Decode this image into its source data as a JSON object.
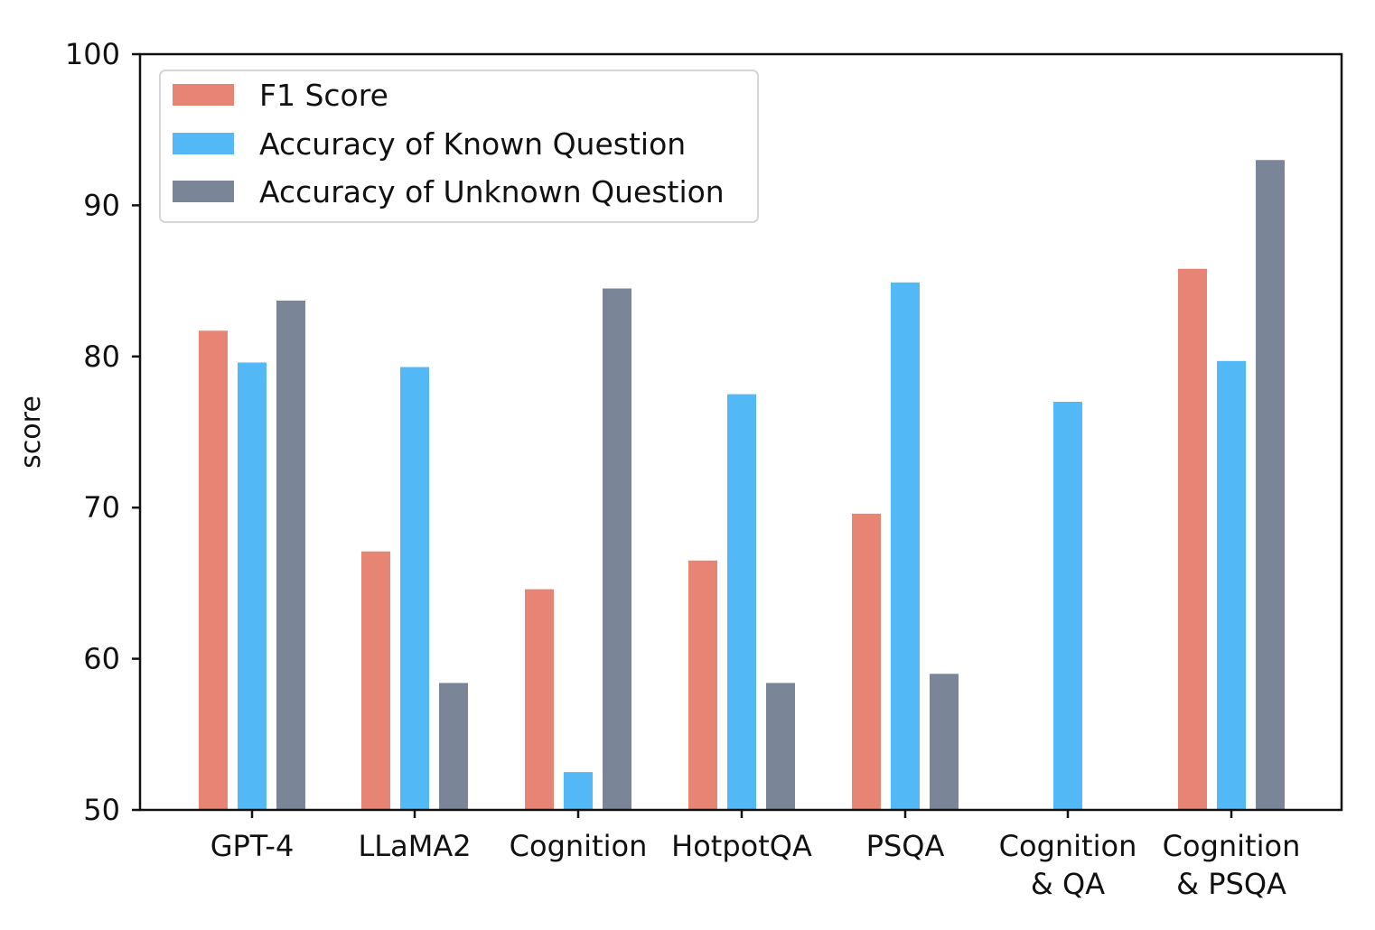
{
  "chart_data": {
    "type": "bar",
    "title": "",
    "xlabel": "",
    "ylabel": "score",
    "ylim": [
      50,
      100
    ],
    "yticks": [
      50,
      60,
      70,
      80,
      90,
      100
    ],
    "categories": [
      [
        "GPT-4"
      ],
      [
        "LLaMA2"
      ],
      [
        "Cognition"
      ],
      [
        "HotpotQA"
      ],
      [
        "PSQA"
      ],
      [
        "Cognition",
        "& QA"
      ],
      [
        "Cognition",
        "& PSQA"
      ]
    ],
    "series": [
      {
        "name": "F1 Score",
        "color": "#E88474",
        "values": [
          81.7,
          67.1,
          64.6,
          66.5,
          69.6,
          null,
          85.8
        ]
      },
      {
        "name": "Accuracy of Known Question",
        "color": "#53B9F6",
        "values": [
          79.6,
          79.3,
          52.5,
          77.5,
          84.9,
          77.0,
          79.7
        ]
      },
      {
        "name": "Accuracy of Unknown Question",
        "color": "#7A8697",
        "values": [
          83.7,
          58.4,
          84.5,
          58.4,
          59.0,
          null,
          93.0
        ]
      }
    ],
    "legend_position": "top-left",
    "grid": false
  }
}
